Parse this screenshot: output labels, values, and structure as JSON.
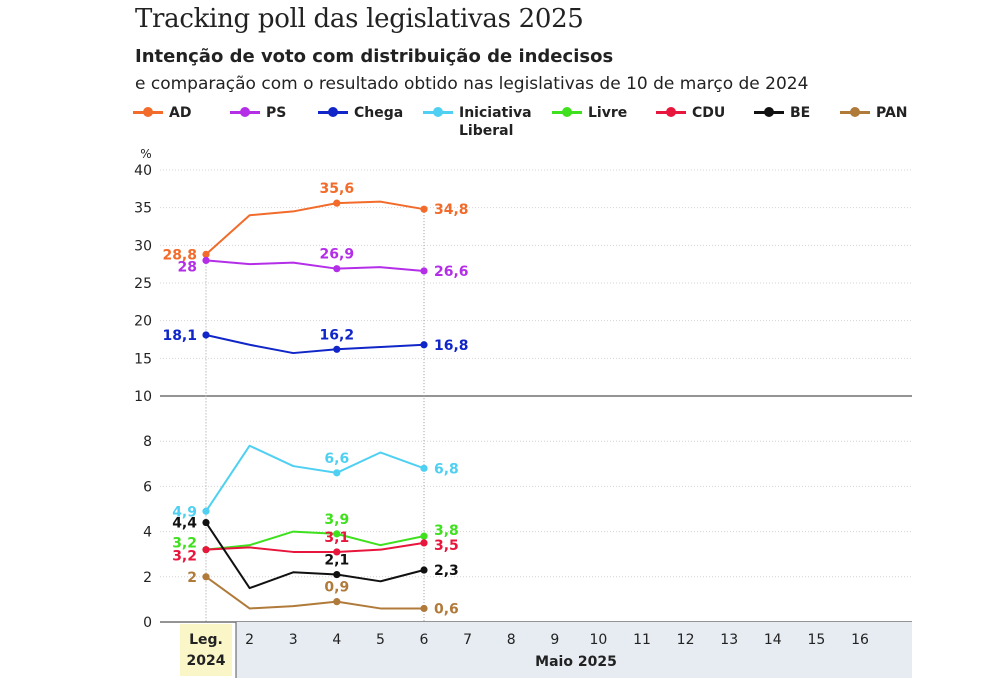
{
  "title": "Tracking poll das legislativas 2025",
  "subtitle": "Intenção de voto com distribuição de indecisos",
  "description": "e comparação com o resultado obtido nas legislativas de 10 de março de 2024",
  "chart_data": {
    "type": "line",
    "y_unit_label": "%",
    "y_ticks_upper": [
      "10",
      "15",
      "20",
      "25",
      "30",
      "35",
      "40"
    ],
    "y_ticks_lower": [
      "0",
      "2",
      "4",
      "6",
      "8",
      "10"
    ],
    "ylim_upper": [
      10,
      40
    ],
    "ylim_lower": [
      0,
      10
    ],
    "x_first_label": [
      "Leg.",
      "2024"
    ],
    "x_ticks": [
      "2",
      "3",
      "4",
      "5",
      "6",
      "7",
      "8",
      "9",
      "10",
      "11",
      "12",
      "13",
      "14",
      "15",
      "16"
    ],
    "xlabel": "Maio 2025",
    "series": [
      {
        "name": "AD",
        "color": "#f26b2a",
        "panel": "upper",
        "x": [
          1,
          2,
          3,
          4,
          5,
          6
        ],
        "values": [
          28.8,
          34,
          34.5,
          35.6,
          35.8,
          34.8
        ],
        "labels": [
          {
            "x": 1,
            "text": "28,8",
            "pos": "left"
          },
          {
            "x": 4,
            "text": "35,6",
            "pos": "above"
          },
          {
            "x": 6,
            "text": "34,8",
            "pos": "right"
          }
        ]
      },
      {
        "name": "PS",
        "color": "#b42ee8",
        "panel": "upper",
        "x": [
          1,
          2,
          3,
          4,
          5,
          6
        ],
        "values": [
          28,
          27.5,
          27.7,
          26.9,
          27.1,
          26.6
        ],
        "labels": [
          {
            "x": 1,
            "text": "28",
            "pos": "left-low"
          },
          {
            "x": 4,
            "text": "26,9",
            "pos": "above"
          },
          {
            "x": 6,
            "text": "26,6",
            "pos": "right"
          }
        ]
      },
      {
        "name": "Chega",
        "color": "#1026c8",
        "panel": "upper",
        "x": [
          1,
          2,
          3,
          4,
          5,
          6
        ],
        "values": [
          18.1,
          16.8,
          15.7,
          16.2,
          16.5,
          16.8
        ],
        "labels": [
          {
            "x": 1,
            "text": "18,1",
            "pos": "left"
          },
          {
            "x": 4,
            "text": "16,2",
            "pos": "above"
          },
          {
            "x": 6,
            "text": "16,8",
            "pos": "right"
          }
        ]
      },
      {
        "name": "Iniciativa Liberal",
        "legend_lines": [
          "Iniciativa",
          "Liberal"
        ],
        "color": "#4fd0f2",
        "panel": "lower",
        "x": [
          1,
          2,
          3,
          4,
          5,
          6
        ],
        "values": [
          4.9,
          7.8,
          6.9,
          6.6,
          7.5,
          6.8
        ],
        "labels": [
          {
            "x": 1,
            "text": "4,9",
            "pos": "left"
          },
          {
            "x": 4,
            "text": "6,6",
            "pos": "above"
          },
          {
            "x": 6,
            "text": "6,8",
            "pos": "right"
          }
        ]
      },
      {
        "name": "Livre",
        "color": "#3fe01e",
        "panel": "lower",
        "x": [
          1,
          2,
          3,
          4,
          5,
          6
        ],
        "values": [
          3.2,
          3.4,
          4.0,
          3.9,
          3.4,
          3.8
        ],
        "labels": [
          {
            "x": 1,
            "text": "3,2",
            "pos": "left-up"
          },
          {
            "x": 4,
            "text": "3,9",
            "pos": "above"
          },
          {
            "x": 6,
            "text": "3,8",
            "pos": "right-up"
          }
        ]
      },
      {
        "name": "CDU",
        "color": "#e8163c",
        "panel": "lower",
        "x": [
          1,
          2,
          3,
          4,
          5,
          6
        ],
        "values": [
          3.2,
          3.3,
          3.1,
          3.1,
          3.2,
          3.5
        ],
        "labels": [
          {
            "x": 1,
            "text": "3,2",
            "pos": "left-low"
          },
          {
            "x": 4,
            "text": "3,1",
            "pos": "above"
          },
          {
            "x": 6,
            "text": "3,5",
            "pos": "right-low"
          }
        ]
      },
      {
        "name": "BE",
        "color": "#111111",
        "panel": "lower",
        "x": [
          1,
          2,
          3,
          4,
          5,
          6
        ],
        "values": [
          4.4,
          1.5,
          2.2,
          2.1,
          1.8,
          2.3
        ],
        "labels": [
          {
            "x": 1,
            "text": "4,4",
            "pos": "left"
          },
          {
            "x": 4,
            "text": "2,1",
            "pos": "above"
          },
          {
            "x": 6,
            "text": "2,3",
            "pos": "right"
          }
        ]
      },
      {
        "name": "PAN",
        "color": "#b07a3a",
        "panel": "lower",
        "x": [
          1,
          2,
          3,
          4,
          5,
          6
        ],
        "values": [
          2,
          0.6,
          0.7,
          0.9,
          0.6,
          0.6
        ],
        "labels": [
          {
            "x": 1,
            "text": "2",
            "pos": "left"
          },
          {
            "x": 4,
            "text": "0,9",
            "pos": "above"
          },
          {
            "x": 6,
            "text": "0,6",
            "pos": "right"
          }
        ]
      }
    ]
  }
}
